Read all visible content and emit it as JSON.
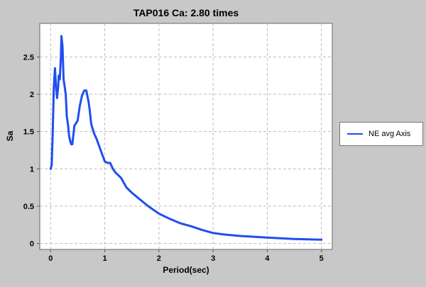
{
  "chart_data": {
    "type": "line",
    "title": "TAP016 Ca: 2.80 times",
    "xlabel": "Period(sec)",
    "ylabel": "Sa",
    "xlim": [
      -0.2,
      5.2
    ],
    "ylim": [
      -0.08,
      2.95
    ],
    "xticks": [
      0,
      1,
      2,
      3,
      4,
      5
    ],
    "yticks": [
      0,
      0.5,
      1,
      1.5,
      2,
      2.5
    ],
    "xtick_labels": [
      "0",
      "1",
      "2",
      "3",
      "4",
      "5"
    ],
    "ytick_labels": [
      "0",
      "0.5",
      "1",
      "1.5",
      "2",
      "2.5"
    ],
    "grid": true,
    "legend_position": "right",
    "background_color": "#c8c8c8",
    "plot_background": "#ffffff",
    "series": [
      {
        "name": "NE avg Axis",
        "color": "#1f4ef0",
        "x": [
          0.0,
          0.02,
          0.04,
          0.06,
          0.08,
          0.1,
          0.12,
          0.14,
          0.15,
          0.17,
          0.19,
          0.2,
          0.22,
          0.24,
          0.26,
          0.28,
          0.3,
          0.32,
          0.34,
          0.36,
          0.38,
          0.4,
          0.42,
          0.44,
          0.46,
          0.5,
          0.54,
          0.58,
          0.62,
          0.66,
          0.7,
          0.72,
          0.75,
          0.8,
          0.85,
          0.9,
          0.95,
          1.0,
          1.05,
          1.1,
          1.15,
          1.2,
          1.3,
          1.4,
          1.5,
          1.6,
          1.8,
          2.0,
          2.2,
          2.4,
          2.6,
          2.8,
          3.0,
          3.2,
          3.5,
          4.0,
          4.5,
          5.0
        ],
        "y": [
          1.0,
          1.05,
          1.5,
          2.1,
          2.35,
          2.1,
          1.95,
          2.1,
          2.25,
          2.2,
          2.5,
          2.78,
          2.65,
          2.2,
          2.1,
          2.0,
          1.7,
          1.6,
          1.45,
          1.38,
          1.33,
          1.33,
          1.45,
          1.58,
          1.6,
          1.65,
          1.85,
          1.98,
          2.05,
          2.05,
          1.9,
          1.8,
          1.6,
          1.48,
          1.4,
          1.3,
          1.2,
          1.1,
          1.08,
          1.08,
          1.0,
          0.95,
          0.88,
          0.75,
          0.68,
          0.62,
          0.5,
          0.4,
          0.33,
          0.27,
          0.23,
          0.18,
          0.14,
          0.12,
          0.1,
          0.08,
          0.06,
          0.05
        ]
      }
    ]
  }
}
